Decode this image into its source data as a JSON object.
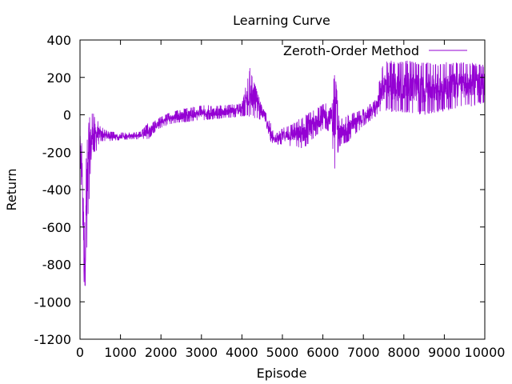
{
  "chart_data": {
    "type": "line",
    "title": "Learning Curve",
    "xlabel": "Episode",
    "ylabel": "Return",
    "xlim": [
      0,
      10000
    ],
    "ylim": [
      -1200,
      400
    ],
    "x_ticks": [
      0,
      1000,
      2000,
      3000,
      4000,
      5000,
      6000,
      7000,
      8000,
      9000,
      10000
    ],
    "y_ticks": [
      -1200,
      -1000,
      -800,
      -600,
      -400,
      -200,
      0,
      200,
      400
    ],
    "grid": false,
    "legend_position": "top-right",
    "series": [
      {
        "name": "Zeroth-Order Method",
        "color": "#9400d3",
        "style": "noisy-line",
        "envelope": {
          "x": [
            0,
            60,
            100,
            130,
            160,
            200,
            260,
            320,
            400,
            500,
            700,
            1000,
            1300,
            1500,
            1700,
            1800,
            2000,
            2200,
            2500,
            3000,
            3500,
            4000,
            4200,
            4500,
            4600,
            4700,
            4800,
            5000,
            5300,
            5500,
            5700,
            5900,
            6000,
            6200,
            6300,
            6400,
            6600,
            7000,
            7300,
            7500,
            8000,
            8500,
            9000,
            9500,
            10000
          ],
          "upper": [
            -60,
            -180,
            -350,
            -450,
            -150,
            -60,
            30,
            10,
            -10,
            -60,
            -90,
            -95,
            -95,
            -90,
            -40,
            -40,
            -10,
            10,
            30,
            50,
            50,
            60,
            255,
            40,
            10,
            -40,
            -110,
            -70,
            -40,
            -10,
            20,
            40,
            60,
            80,
            270,
            -30,
            0,
            30,
            80,
            290,
            290,
            280,
            280,
            280,
            270
          ],
          "lower": [
            -250,
            -500,
            -1100,
            -1050,
            -800,
            -550,
            -400,
            -200,
            -200,
            -140,
            -140,
            -135,
            -130,
            -130,
            -130,
            -100,
            -70,
            -50,
            -40,
            -30,
            -20,
            -10,
            -10,
            -30,
            -60,
            -140,
            -160,
            -160,
            -170,
            -190,
            -150,
            -100,
            -80,
            -90,
            -300,
            -170,
            -150,
            -60,
            -10,
            20,
            10,
            0,
            20,
            40,
            60
          ]
        }
      }
    ]
  }
}
